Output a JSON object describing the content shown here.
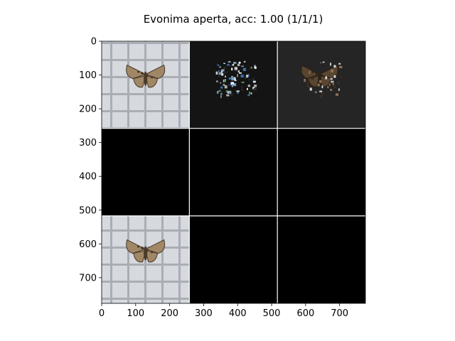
{
  "chart_data": {
    "type": "heatmap",
    "title": "Evonima aperta, acc: 1.00 (1/1/1)",
    "xlabel": "",
    "ylabel": "",
    "xlim": [
      0,
      776
    ],
    "ylim": [
      776,
      0
    ],
    "x_ticks": [
      0,
      100,
      200,
      300,
      400,
      500,
      600,
      700
    ],
    "y_ticks": [
      0,
      100,
      200,
      300,
      400,
      500,
      600,
      700
    ],
    "grid": false,
    "grid_lines": [
      258,
      517
    ],
    "panels": [
      {
        "row": 0,
        "col": 0,
        "content": "moth-photo-graph-paper"
      },
      {
        "row": 0,
        "col": 1,
        "content": "saliency-colored-dark"
      },
      {
        "row": 0,
        "col": 2,
        "content": "masked-moth-dark"
      },
      {
        "row": 1,
        "col": 0,
        "content": "black"
      },
      {
        "row": 1,
        "col": 1,
        "content": "black"
      },
      {
        "row": 1,
        "col": 2,
        "content": "black"
      },
      {
        "row": 2,
        "col": 0,
        "content": "moth-photo-graph-paper"
      },
      {
        "row": 2,
        "col": 1,
        "content": "black"
      },
      {
        "row": 2,
        "col": 2,
        "content": "black"
      }
    ],
    "colors": {
      "background": "#000000",
      "grid_line": "#ffffff",
      "paper": "#c9cdd3",
      "paper_grid": "#8d939c",
      "moth_body": "#a08766",
      "moth_dark": "#4a3a28",
      "dark_panel": "#141414",
      "dark_panel2": "#252525"
    }
  }
}
